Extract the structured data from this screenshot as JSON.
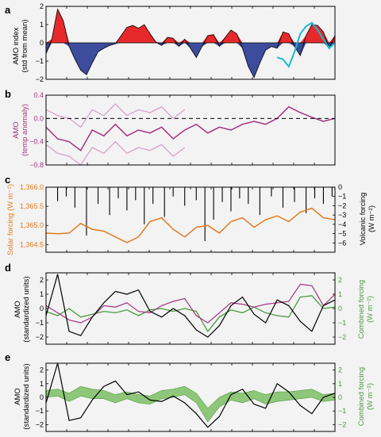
{
  "colors": {
    "positive_fill": "#e8292b",
    "negative_fill": "#3d4c9d",
    "recon_line": "#14bcd0",
    "amo_recon": "#a3337f",
    "amo_bounds": "#d6a3c9",
    "solar": "#e07b1f",
    "volcanic": "#000000",
    "forcing": "#4a9a3c",
    "forcing_band": "#8fc77a",
    "background": "#f3f3f3"
  },
  "panels": {
    "a": {
      "label": "a",
      "ylabel_1": "AMO index",
      "ylabel_2": "(std from mean)",
      "ticks": [
        "2",
        "1",
        "0",
        "−1",
        "−2"
      ]
    },
    "b": {
      "label": "b",
      "ylabel_1": "AMO",
      "ylabel_2": "(temp anomaly)",
      "ticks": [
        "0.4",
        "0.0",
        "−0.4",
        "−0.8"
      ]
    },
    "c": {
      "label": "c",
      "ylabel_left": "Solar forcing (W m⁻²)",
      "ylabel_right": "Volcanic forcing",
      "ylabel_right_2": "(W m⁻²)",
      "ticks_left": [
        "1,366.0",
        "1,365.5",
        "1,365.0",
        "1,364.5"
      ],
      "ticks_right": [
        "0",
        "−1",
        "−2",
        "−3",
        "−4",
        "−5",
        "−6"
      ]
    },
    "d": {
      "label": "d",
      "ylabel_1": "AMO",
      "ylabel_2": "(standardized units)",
      "ylabel_right_1": "Combined forcing",
      "ylabel_right_2": "(W m⁻²)",
      "ticks_left": [
        "2",
        "1",
        "0",
        "−1",
        "−2"
      ],
      "ticks_right": [
        "2",
        "1",
        "0",
        "−1",
        "−2"
      ]
    },
    "e": {
      "label": "e",
      "ylabel_1": "AMO",
      "ylabel_2": "(standardized units)",
      "ylabel_right_1": "Combined forcing",
      "ylabel_right_2": "(W m⁻²)",
      "ticks_left": [
        "2",
        "1",
        "0",
        "−1",
        "−2"
      ],
      "ticks_right": [
        "2",
        "1",
        "0",
        "−1",
        "−2"
      ]
    }
  },
  "chart_data": [
    {
      "panel": "a",
      "type": "area",
      "ylabel": "AMO index (std from mean)",
      "ylim": [
        -2,
        2
      ],
      "x": [
        0,
        0.02,
        0.04,
        0.06,
        0.08,
        0.1,
        0.12,
        0.14,
        0.16,
        0.18,
        0.2,
        0.22,
        0.24,
        0.26,
        0.28,
        0.3,
        0.32,
        0.34,
        0.36,
        0.38,
        0.4,
        0.42,
        0.44,
        0.46,
        0.48,
        0.5,
        0.52,
        0.54,
        0.56,
        0.58,
        0.6,
        0.62,
        0.64,
        0.66,
        0.68,
        0.7,
        0.72,
        0.74,
        0.76,
        0.78,
        0.8,
        0.82,
        0.84,
        0.86,
        0.88,
        0.9,
        0.92,
        0.94,
        0.96,
        0.98,
        1.0
      ],
      "series": [
        {
          "values": [
            -0.6,
            0.2,
            1.85,
            1.2,
            -0.2,
            -0.9,
            -1.5,
            -1.75,
            -1.1,
            -0.5,
            -0.3,
            -0.15,
            -0.05,
            0.4,
            0.85,
            0.95,
            0.8,
            1.0,
            0.5,
            0.05,
            -0.15,
            0.3,
            0.25,
            -0.2,
            0.2,
            -0.3,
            -0.8,
            -0.2,
            0.4,
            0.45,
            -0.2,
            0.3,
            0.7,
            0.5,
            -0.3,
            -1.3,
            -1.9,
            -1.1,
            -0.4,
            -0.2,
            -0.3,
            0.6,
            0.5,
            -0.2,
            -0.7,
            0.4,
            1.0,
            0.95,
            0.6,
            -0.3,
            0.4
          ]
        },
        {
          "name": "",
          "values": [
            null,
            null,
            null,
            null,
            null,
            null,
            null,
            null,
            null,
            null,
            null,
            null,
            null,
            null,
            null,
            null,
            null,
            null,
            null,
            null,
            null,
            null,
            null,
            null,
            null,
            null,
            null,
            null,
            null,
            null,
            null,
            null,
            null,
            null,
            null,
            null,
            null,
            null,
            null,
            null,
            -0.8,
            -0.9,
            -1.3,
            -0.5,
            0.5,
            0.9,
            1.1,
            0.7,
            0.2,
            -0.3,
            0.0
          ]
        }
      ]
    },
    {
      "panel": "b",
      "type": "line",
      "ylabel": "AMO (temp anomaly)",
      "ylim": [
        -0.8,
        0.4
      ],
      "x": [
        0,
        0.04,
        0.08,
        0.12,
        0.16,
        0.2,
        0.24,
        0.28,
        0.32,
        0.36,
        0.4,
        0.44,
        0.48,
        0.52,
        0.56,
        0.6,
        0.64,
        0.68,
        0.72,
        0.76,
        0.8,
        0.84,
        0.88,
        0.92,
        0.96,
        1.0
      ],
      "series": [
        {
          "name": "",
          "values": [
            -0.15,
            -0.35,
            -0.4,
            -0.55,
            -0.2,
            -0.3,
            -0.1,
            -0.3,
            -0.2,
            -0.25,
            -0.15,
            -0.35,
            -0.2,
            -0.1,
            -0.25,
            -0.15,
            -0.2,
            -0.1,
            -0.05,
            -0.1,
            0.0,
            0.2,
            0.1,
            0.02,
            -0.05,
            0.0
          ]
        },
        {
          "name": "",
          "values": [
            0.15,
            0.05,
            0.0,
            -0.15,
            0.15,
            0.05,
            0.25,
            0.05,
            0.15,
            0.1,
            0.2,
            0.0,
            0.15,
            null,
            null,
            null,
            null,
            null,
            null,
            null,
            null,
            null,
            null,
            null,
            null,
            null
          ]
        },
        {
          "name": "",
          "values": [
            -0.45,
            -0.6,
            -0.65,
            -0.8,
            -0.5,
            -0.6,
            -0.4,
            -0.6,
            -0.5,
            -0.55,
            -0.45,
            -0.65,
            -0.5,
            null,
            null,
            null,
            null,
            null,
            null,
            null,
            null,
            null,
            null,
            null,
            null,
            null
          ]
        }
      ]
    },
    {
      "panel": "c",
      "type": "line",
      "ylabel": "Solar forcing (W m⁻²)",
      "y2label": "Volcanic forcing (W m⁻²)",
      "ylim": [
        1364.3,
        1366.0
      ],
      "y2lim": [
        -7,
        0
      ],
      "x": [
        0,
        0.04,
        0.08,
        0.12,
        0.16,
        0.2,
        0.24,
        0.28,
        0.32,
        0.36,
        0.4,
        0.44,
        0.48,
        0.52,
        0.56,
        0.6,
        0.64,
        0.68,
        0.72,
        0.76,
        0.8,
        0.84,
        0.88,
        0.92,
        0.96,
        1.0
      ],
      "series": [
        {
          "name": "",
          "values": [
            1364.8,
            1364.78,
            1364.8,
            1365.05,
            1364.9,
            1364.85,
            1364.7,
            1364.55,
            1364.7,
            1365.1,
            1365.2,
            1364.9,
            1364.7,
            1364.95,
            1365.0,
            1364.8,
            1365.1,
            1365.2,
            1364.95,
            1365.15,
            1365.25,
            1365.1,
            1365.35,
            1365.45,
            1365.2,
            1365.15
          ]
        }
      ],
      "volcanic_events": [
        {
          "x": 0.04,
          "value": -1.5
        },
        {
          "x": 0.07,
          "value": -1.0
        },
        {
          "x": 0.1,
          "value": -2.2
        },
        {
          "x": 0.14,
          "value": -5.2
        },
        {
          "x": 0.18,
          "value": -1.8
        },
        {
          "x": 0.22,
          "value": -3.0
        },
        {
          "x": 0.25,
          "value": -1.2
        },
        {
          "x": 0.28,
          "value": -2.5
        },
        {
          "x": 0.31,
          "value": -1.4
        },
        {
          "x": 0.34,
          "value": -4.0
        },
        {
          "x": 0.37,
          "value": -1.8
        },
        {
          "x": 0.41,
          "value": -3.2
        },
        {
          "x": 0.44,
          "value": -1.0
        },
        {
          "x": 0.48,
          "value": -2.0
        },
        {
          "x": 0.52,
          "value": -1.4
        },
        {
          "x": 0.55,
          "value": -5.8
        },
        {
          "x": 0.58,
          "value": -3.5
        },
        {
          "x": 0.61,
          "value": -1.6
        },
        {
          "x": 0.64,
          "value": -2.6
        },
        {
          "x": 0.67,
          "value": -1.2
        },
        {
          "x": 0.7,
          "value": -1.8
        },
        {
          "x": 0.74,
          "value": -3.0
        },
        {
          "x": 0.78,
          "value": -1.0
        },
        {
          "x": 0.82,
          "value": -2.2
        },
        {
          "x": 0.86,
          "value": -1.6
        },
        {
          "x": 0.9,
          "value": -2.8
        },
        {
          "x": 0.93,
          "value": -1.2
        },
        {
          "x": 0.96,
          "value": -1.8
        },
        {
          "x": 0.99,
          "value": -1.0
        }
      ]
    },
    {
      "panel": "d",
      "type": "line",
      "ylabel": "AMO (standardized units)",
      "y2label": "Combined forcing (W m⁻²)",
      "ylim": [
        -2.5,
        2.5
      ],
      "y2lim": [
        -2.5,
        2.5
      ],
      "x": [
        0,
        0.04,
        0.08,
        0.12,
        0.16,
        0.2,
        0.24,
        0.28,
        0.32,
        0.36,
        0.4,
        0.44,
        0.48,
        0.52,
        0.56,
        0.6,
        0.64,
        0.68,
        0.72,
        0.76,
        0.8,
        0.84,
        0.88,
        0.92,
        0.96,
        1.0
      ],
      "series": [
        {
          "name": "",
          "values": [
            -0.5,
            2.4,
            -1.6,
            -1.9,
            -0.6,
            0.4,
            1.2,
            1.0,
            1.3,
            -0.2,
            -0.6,
            0.0,
            -0.5,
            -1.5,
            -2.0,
            -1.2,
            0.2,
            0.8,
            -0.4,
            -1.0,
            0.6,
            0.2,
            -0.9,
            -1.6,
            0.2,
            0.6
          ]
        },
        {
          "name": "",
          "values": [
            0.2,
            -0.3,
            -0.8,
            -1.0,
            -0.6,
            0.2,
            0.1,
            0.4,
            -0.2,
            -0.3,
            0.2,
            0.5,
            0.7,
            -0.5,
            -1.0,
            -0.3,
            0.4,
            0.3,
            0.1,
            0.3,
            0.4,
            0.5,
            1.7,
            1.6,
            0.2,
            1.0
          ]
        },
        {
          "name": "",
          "values": [
            -0.2,
            -0.5,
            0.0,
            -0.6,
            -0.4,
            -0.2,
            -0.3,
            -0.1,
            -0.5,
            -0.1,
            0.0,
            -0.2,
            0.0,
            -0.2,
            -1.6,
            -0.6,
            -0.1,
            -0.3,
            0.1,
            -0.3,
            -0.5,
            -0.6,
            0.8,
            0.9,
            0.0,
            0.1
          ]
        }
      ]
    },
    {
      "panel": "e",
      "type": "area",
      "ylabel": "AMO (standardized units)",
      "y2label": "Combined forcing (W m⁻²)",
      "ylim": [
        -2.5,
        2.5
      ],
      "y2lim": [
        -2.5,
        2.5
      ],
      "x": [
        0,
        0.04,
        0.08,
        0.12,
        0.16,
        0.2,
        0.24,
        0.28,
        0.32,
        0.36,
        0.4,
        0.44,
        0.48,
        0.52,
        0.56,
        0.6,
        0.64,
        0.68,
        0.72,
        0.76,
        0.8,
        0.84,
        0.88,
        0.92,
        0.96,
        1.0
      ],
      "series": [
        {
          "name": "",
          "values": [
            -0.4,
            2.5,
            -1.7,
            -1.5,
            -0.2,
            0.8,
            1.2,
            0.2,
            0.4,
            -0.2,
            -0.3,
            0.1,
            -0.4,
            -1.2,
            -2.2,
            -1.4,
            0.2,
            0.6,
            -0.5,
            -0.8,
            1.0,
            0.4,
            -0.6,
            -1.2,
            0.0,
            0.3
          ]
        },
        {
          "name": "",
          "values_upper": [
            0.5,
            0.6,
            0.3,
            0.8,
            0.6,
            0.5,
            0.2,
            0.4,
            0.2,
            0.1,
            0.5,
            0.6,
            0.8,
            0.3,
            -0.8,
            0.0,
            0.4,
            0.3,
            0.5,
            0.2,
            0.4,
            0.4,
            0.5,
            0.6,
            0.2,
            0.3
          ],
          "values_lower": [
            0.0,
            0.1,
            -0.3,
            0.1,
            -0.1,
            -0.1,
            -0.4,
            -0.1,
            -0.4,
            -0.5,
            -0.1,
            0.0,
            0.2,
            -0.4,
            -1.8,
            -0.7,
            -0.2,
            -0.4,
            -0.1,
            -0.5,
            -0.3,
            -0.2,
            -0.1,
            0.0,
            -0.3,
            -0.2
          ]
        }
      ]
    }
  ]
}
